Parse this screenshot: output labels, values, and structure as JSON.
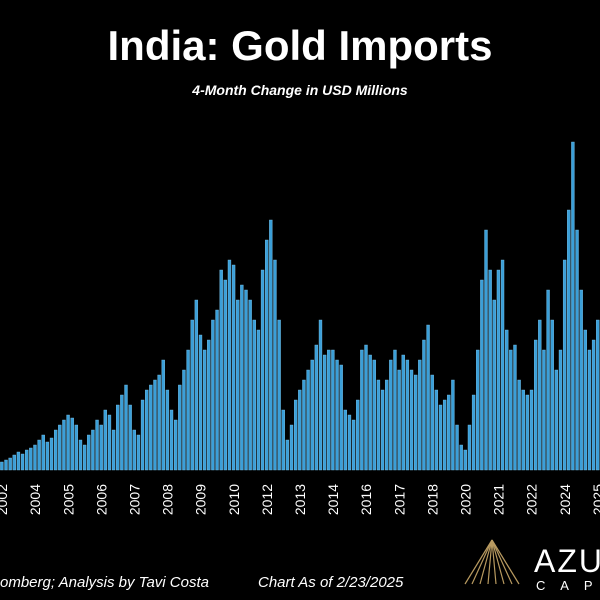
{
  "chart_data": {
    "type": "bar",
    "title": "India: Gold Imports",
    "subtitle": "4-Month Change in USD Millions",
    "source": "omberg; Analysis by Tavi Costa",
    "note": "Chart As of 2/23/2025",
    "logo": {
      "name": "AZU",
      "sub": "C A P"
    },
    "color": "#3b9fd8",
    "categories": [
      "2002",
      null,
      null,
      null,
      null,
      null,
      null,
      null,
      "2004",
      null,
      null,
      null,
      null,
      null,
      null,
      null,
      "2005",
      null,
      null,
      null,
      null,
      null,
      null,
      null,
      "2006",
      null,
      null,
      null,
      null,
      null,
      null,
      null,
      "2007",
      null,
      null,
      null,
      null,
      null,
      null,
      null,
      "2008",
      null,
      null,
      null,
      null,
      null,
      null,
      null,
      "2009",
      null,
      null,
      null,
      null,
      null,
      null,
      null,
      "2010",
      null,
      null,
      null,
      null,
      null,
      null,
      null,
      "2012",
      null,
      null,
      null,
      null,
      null,
      null,
      null,
      "2013",
      null,
      null,
      null,
      null,
      null,
      null,
      null,
      "2014",
      null,
      null,
      null,
      null,
      null,
      null,
      null,
      "2016",
      null,
      null,
      null,
      null,
      null,
      null,
      null,
      "2017",
      null,
      null,
      null,
      null,
      null,
      null,
      null,
      "2018",
      null,
      null,
      null,
      null,
      null,
      null,
      null,
      "2020",
      null,
      null,
      null,
      null,
      null,
      null,
      null,
      "2021",
      null,
      null,
      null,
      null,
      null,
      null,
      null,
      "2022",
      null,
      null,
      null,
      null,
      null,
      null,
      null,
      "2024",
      null,
      null,
      null,
      null,
      null,
      null,
      null,
      "2025"
    ],
    "values": [
      640,
      800,
      960,
      1200,
      1440,
      1280,
      1600,
      1760,
      2000,
      2400,
      2800,
      2240,
      2560,
      3200,
      3600,
      4000,
      4400,
      4160,
      3600,
      2400,
      2000,
      2800,
      3200,
      4000,
      3600,
      4800,
      4400,
      3200,
      5200,
      6000,
      6800,
      5200,
      3200,
      2800,
      5600,
      6400,
      6800,
      7200,
      7600,
      8800,
      6400,
      4800,
      4000,
      6800,
      8000,
      9600,
      12000,
      13600,
      10800,
      9600,
      10400,
      12000,
      12800,
      16000,
      15200,
      16800,
      16400,
      13600,
      14800,
      14400,
      13600,
      12000,
      11200,
      16000,
      18400,
      20000,
      16800,
      12000,
      4800,
      2400,
      3600,
      5600,
      6400,
      7200,
      8000,
      8800,
      10000,
      12000,
      9200,
      9600,
      9600,
      8800,
      8400,
      4800,
      4400,
      4000,
      5600,
      9600,
      10000,
      9200,
      8800,
      7200,
      6400,
      7200,
      8800,
      9600,
      8000,
      9200,
      8800,
      8000,
      7600,
      8800,
      10400,
      11600,
      7600,
      6400,
      5200,
      5600,
      6000,
      7200,
      3600,
      2000,
      1600,
      3600,
      6000,
      9600,
      15200,
      19200,
      16000,
      13600,
      16000,
      16800,
      11200,
      9600,
      10000,
      7200,
      6400,
      6000,
      6400,
      10400,
      12000,
      9600,
      14400,
      12000,
      8000,
      9600,
      16800,
      20800,
      26240,
      19200,
      14400,
      11200,
      9600,
      10400,
      12000
    ]
  }
}
